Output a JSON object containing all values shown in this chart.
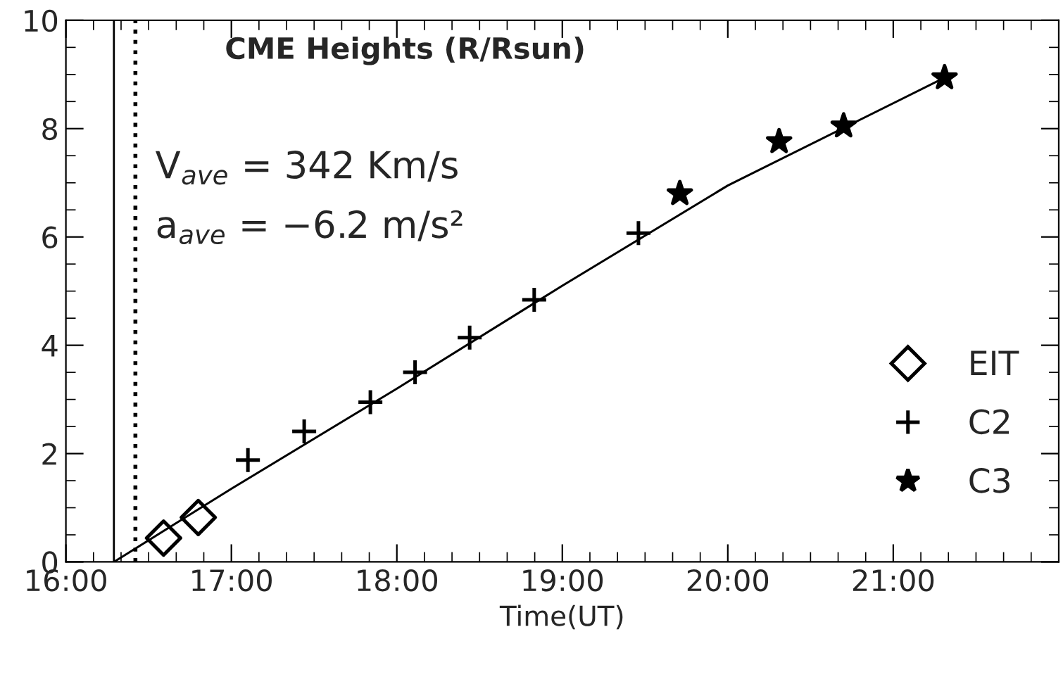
{
  "chart_data": {
    "type": "scatter",
    "title": "CME Heights (R/Rsun)",
    "xlabel": "Time(UT)",
    "annotations": [
      "V$_{ave}$ = 342 Km/s",
      "a$_{ave}$ = −6.2 m/s²"
    ],
    "xlim": [
      16,
      22
    ],
    "ylim": [
      0,
      10
    ],
    "xticks": [
      {
        "value": 16,
        "label": "16:00"
      },
      {
        "value": 17,
        "label": "17:00"
      },
      {
        "value": 18,
        "label": "18:00"
      },
      {
        "value": 19,
        "label": "19:00"
      },
      {
        "value": 20,
        "label": "20:00"
      },
      {
        "value": 21,
        "label": "21:00"
      }
    ],
    "yticks": [
      0,
      2,
      4,
      6,
      8,
      10
    ],
    "grid": false,
    "legend": "bottom right",
    "ref_lines": [
      {
        "axis": "x",
        "value": 16.29,
        "color": "#000000",
        "line_style": "solid"
      },
      {
        "axis": "x",
        "value": 16.42,
        "color": "#000000",
        "line_style": "dotted"
      }
    ],
    "series": [
      {
        "name": "EIT",
        "marker": "diamond",
        "color": "#000000",
        "x": [
          16.59,
          16.8
        ],
        "values": [
          0.44,
          0.82
        ]
      },
      {
        "name": "C2",
        "marker": "cross",
        "color": "#000000",
        "x": [
          17.1,
          17.44,
          17.84,
          18.11,
          18.44,
          18.83,
          19.46
        ],
        "values": [
          1.88,
          2.41,
          2.95,
          3.5,
          4.14,
          4.84,
          6.07
        ]
      },
      {
        "name": "C3",
        "marker": "star",
        "color": "#000000",
        "x": [
          19.71,
          20.31,
          20.7,
          21.31
        ],
        "values": [
          6.8,
          7.76,
          8.05,
          8.94
        ]
      },
      {
        "type": "line",
        "line_style": "solid",
        "color": "#000000",
        "x": [
          16.29,
          17.0,
          18.0,
          19.0,
          20.0,
          21.31
        ],
        "values": [
          0.0,
          1.35,
          3.2,
          5.1,
          6.95,
          8.94
        ]
      }
    ]
  }
}
